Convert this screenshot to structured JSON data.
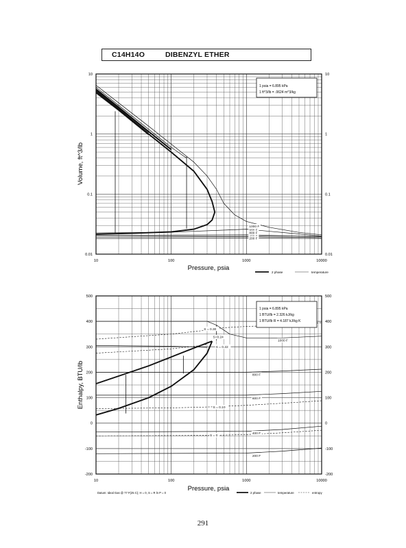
{
  "header": {
    "formula": "C14H14O",
    "compound": "DIBENZYL ETHER"
  },
  "page_number": "291",
  "footer_datum": "Datum: Ideal Gas @ 77 F(25 C); H = 0, S = R ln P = 0",
  "legend_labels": {
    "two_phase": "2 phase",
    "temperature": "temperature",
    "entropy": "entropy"
  },
  "volume_conversions": [
    "1 psia = 6.895 kPa",
    "1 ft^3/lb = .0624 m^3/kg"
  ],
  "enthalpy_conversions": [
    "1 psia = 6.895 kPa",
    "1 BTU/lb = 2.326 kJ/kg",
    "1 BTU/lb R = 4.187 kJ/kg K"
  ],
  "chart_data": [
    {
      "id": "volume",
      "type": "line",
      "xlabel": "Pressure,  psia",
      "ylabel": "Volume, ft^3/lb",
      "xscale": "log",
      "yscale": "log",
      "xlim": [
        10,
        10000
      ],
      "ylim": [
        0.01,
        10
      ],
      "x_tick_labels": [
        "10",
        "100",
        "1000",
        "10000"
      ],
      "y_tick_labels": [
        "0.01",
        "0.1",
        "1",
        "10"
      ],
      "grid": true,
      "legend_position": "below-right",
      "series": [
        {
          "name": "2 phase",
          "style": "heavy",
          "points": [
            [
              10,
              5.2
            ],
            [
              20,
              2.6
            ],
            [
              50,
              1.0
            ],
            [
              100,
              0.5
            ],
            [
              200,
              0.24
            ],
            [
              300,
              0.12
            ],
            [
              350,
              0.075
            ],
            [
              380,
              0.05
            ],
            [
              350,
              0.037
            ],
            [
              300,
              0.031
            ],
            [
              200,
              0.026
            ],
            [
              100,
              0.0235
            ],
            [
              30,
              0.0222
            ],
            [
              10,
              0.0215
            ]
          ]
        },
        {
          "name": "",
          "style": "heavy",
          "points": [
            [
              10,
              5.6
            ],
            [
              20,
              2.8
            ],
            [
              50,
              1.1
            ],
            [
              100,
              0.55
            ]
          ]
        },
        {
          "name": "",
          "style": "heavy",
          "points": [
            [
              10,
              4.9
            ],
            [
              20,
              2.5
            ],
            [
              50,
              0.98
            ]
          ]
        },
        {
          "name": "",
          "style": "thin",
          "points": [
            [
              10,
              6.5
            ],
            [
              20,
              3.3
            ],
            [
              50,
              1.35
            ],
            [
              100,
              0.68
            ],
            [
              200,
              0.34
            ],
            [
              300,
              0.2
            ],
            [
              400,
              0.12
            ],
            [
              500,
              0.07
            ],
            [
              700,
              0.045
            ],
            [
              1000,
              0.035
            ],
            [
              2000,
              0.028
            ],
            [
              5000,
              0.023
            ],
            [
              10000,
              0.021
            ]
          ]
        },
        {
          "name": "",
          "style": "thin",
          "points": [
            [
              10,
              6.0
            ],
            [
              20,
              3.0
            ],
            [
              50,
              1.2
            ],
            [
              100,
              0.6
            ],
            [
              150,
              0.42
            ],
            [
              160,
              0.4
            ]
          ]
        },
        {
          "name": "",
          "style": "thin",
          "points": [
            [
              10,
              5.4
            ],
            [
              20,
              2.7
            ],
            [
              50,
              1.05
            ]
          ]
        },
        {
          "name": "",
          "style": "thin",
          "points": [
            [
              10,
              0.0182
            ],
            [
              1000,
              0.0185
            ],
            [
              10000,
              0.0182
            ]
          ]
        },
        {
          "name": "",
          "style": "thin",
          "points": [
            [
              10,
              0.0192
            ],
            [
              1000,
              0.0196
            ],
            [
              10000,
              0.0188
            ]
          ]
        },
        {
          "name": "",
          "style": "thin",
          "points": [
            [
              10,
              0.0205
            ],
            [
              1000,
              0.021
            ],
            [
              10000,
              0.0195
            ]
          ]
        },
        {
          "name": "",
          "style": "thin",
          "points": [
            [
              10,
              0.0225
            ],
            [
              100,
              0.0232
            ],
            [
              1000,
              0.026
            ],
            [
              10000,
              0.02
            ]
          ]
        }
      ],
      "verticals": [
        [
          18,
          0.0225,
          2.4
        ],
        [
          160,
          0.0265,
          0.42
        ]
      ],
      "annotations": [
        {
          "text": "1000 F",
          "x": 1000,
          "y": 0.029
        },
        {
          "text": "900 F",
          "x": 1000,
          "y": 0.025
        },
        {
          "text": "800 F",
          "x": 1000,
          "y": 0.0225
        },
        {
          "text": "400 F",
          "x": 1000,
          "y": 0.0198
        },
        {
          "text": "200 F",
          "x": 1000,
          "y": 0.0182
        }
      ]
    },
    {
      "id": "enthalpy",
      "type": "line",
      "xlabel": "Pressure,  psia",
      "ylabel": "Enthalpy, BTU/lb",
      "xscale": "log",
      "yscale": "linear",
      "xlim": [
        10,
        10000
      ],
      "ylim": [
        -200,
        500
      ],
      "x_tick_labels": [
        "10",
        "100",
        "1000",
        "10000"
      ],
      "y_tick_labels": [
        "-200",
        "-100",
        "0",
        "100",
        "200",
        "300",
        "400",
        "500"
      ],
      "grid": true,
      "legend_position": "below-right",
      "series": [
        {
          "name": "2 phase",
          "style": "heavy",
          "points": [
            [
              10,
              155
            ],
            [
              20,
              185
            ],
            [
              50,
              225
            ],
            [
              100,
              260
            ],
            [
              200,
              295
            ],
            [
              300,
              315
            ],
            [
              350,
              322
            ]
          ]
        },
        {
          "name": "",
          "style": "heavy",
          "points": [
            [
              10,
              32
            ],
            [
              20,
              58
            ],
            [
              50,
              100
            ],
            [
              100,
              145
            ],
            [
              200,
              210
            ],
            [
              300,
              275
            ],
            [
              350,
              322
            ]
          ]
        },
        {
          "name": "temperature",
          "style": "thin",
          "points": [
            [
              10,
              400
            ],
            [
              300,
              400
            ],
            [
              400,
              385
            ],
            [
              600,
              350
            ],
            [
              1000,
              335
            ],
            [
              3000,
              335
            ],
            [
              10000,
              342
            ]
          ]
        },
        {
          "name": "",
          "style": "thin",
          "points": [
            [
              10,
              305
            ],
            [
              100,
              302
            ],
            [
              200,
              300
            ],
            [
              300,
              298
            ]
          ]
        },
        {
          "name": "",
          "style": "thin",
          "points": [
            [
              10,
              200
            ],
            [
              1000,
              200
            ],
            [
              3000,
              205
            ],
            [
              10000,
              212
            ]
          ]
        },
        {
          "name": "",
          "style": "thin",
          "points": [
            [
              10,
              110
            ],
            [
              1000,
              110
            ],
            [
              3000,
              116
            ],
            [
              10000,
              125
            ]
          ]
        },
        {
          "name": "",
          "style": "thin",
          "points": [
            [
              10,
              -35
            ],
            [
              1000,
              -32
            ],
            [
              3000,
              -25
            ],
            [
              10000,
              -12
            ]
          ]
        },
        {
          "name": "",
          "style": "thin",
          "points": [
            [
              10,
              -120
            ],
            [
              1000,
              -118
            ],
            [
              3000,
              -110
            ],
            [
              10000,
              -98
            ]
          ]
        },
        {
          "name": "entropy",
          "style": "dashed",
          "points": [
            [
              10,
              330
            ],
            [
              100,
              350
            ],
            [
              250,
              363
            ],
            [
              350,
              370
            ],
            [
              500,
              375
            ],
            [
              1000,
              380
            ],
            [
              3000,
              385
            ],
            [
              10000,
              395
            ]
          ]
        },
        {
          "name": "",
          "style": "dashed",
          "points": [
            [
              10,
              275
            ],
            [
              100,
              292
            ],
            [
              250,
              305
            ],
            [
              300,
              310
            ]
          ]
        },
        {
          "name": "",
          "style": "dashed",
          "points": [
            [
              10,
              57
            ],
            [
              100,
              60
            ],
            [
              200,
              62
            ],
            [
              350,
              64
            ],
            [
              1000,
              70
            ],
            [
              3000,
              78
            ],
            [
              10000,
              88
            ]
          ]
        },
        {
          "name": "",
          "style": "dashed",
          "points": [
            [
              10,
              -50
            ],
            [
              100,
              -49
            ],
            [
              350,
              -48
            ],
            [
              1000,
              -45
            ],
            [
              3000,
              -38
            ],
            [
              10000,
              -28
            ]
          ]
        }
      ],
      "verticals": [
        [
          25,
          38,
          190
        ],
        [
          145,
          195,
          265
        ],
        [
          400,
          325,
          385
        ]
      ],
      "annotations": [
        {
          "text": "S = 0.30",
          "x": 250,
          "y": 370
        },
        {
          "text": "S=0.24",
          "x": 330,
          "y": 338
        },
        {
          "text": "S = 0.22",
          "x": 360,
          "y": 300
        },
        {
          "text": "1000 F",
          "x": 2400,
          "y": 325
        },
        {
          "text": "800 F",
          "x": 1100,
          "y": 190
        },
        {
          "text": "600 F",
          "x": 1100,
          "y": 98
        },
        {
          "text": "S = 0.10",
          "x": 330,
          "y": 62
        },
        {
          "text": "400 F",
          "x": 1100,
          "y": -40
        },
        {
          "text": "S = 0",
          "x": 300,
          "y": -48
        },
        {
          "text": "200 F",
          "x": 1100,
          "y": -128
        }
      ]
    }
  ]
}
